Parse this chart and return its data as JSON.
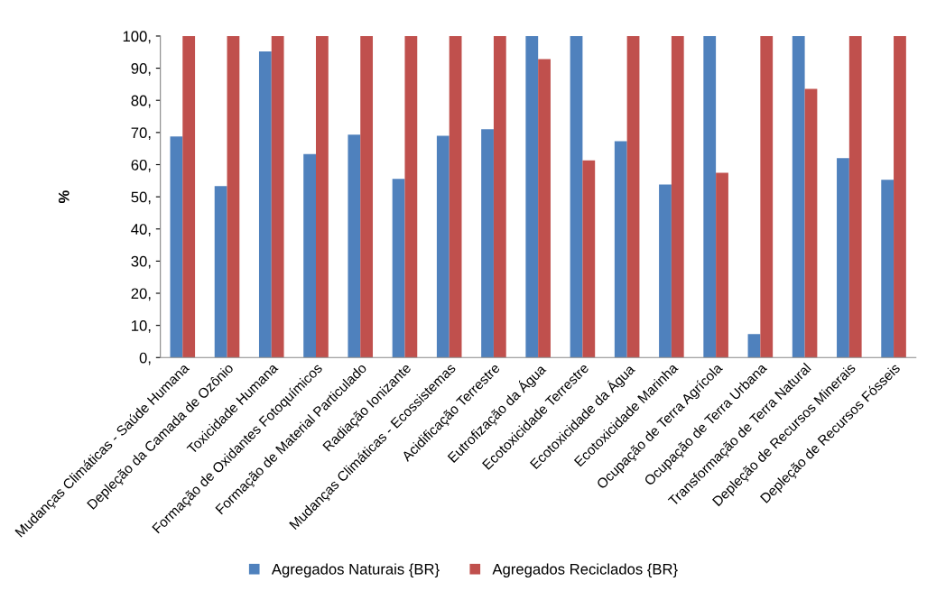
{
  "chart_data": {
    "type": "bar",
    "ylabel": "%",
    "categories": [
      "Mudanças Climáticas - Saúde Humana",
      "Depleção da Camada de Ozônio",
      "Toxicidade Humana",
      "Formação de Oxidantes Fotoquímicos",
      "Formação de Material Particulado",
      "Radiação Ionizante",
      "Mudanças Climáticas - Ecossistemas",
      "Acidificação Terrestre",
      "Eutrofização da Água",
      "Ecotoxicidade Terrestre",
      "Ecotoxicidade da Água",
      "Ecotoxicidade Marinha",
      "Ocupação de Terra Agrícola",
      "Ocupação de Terra Urbana",
      "Transformação de Terra Natural",
      "Depleção de Recursos Minerais",
      "Depleção de Recursos Fósseis"
    ],
    "series": [
      {
        "name": "Agregados Naturais {BR}",
        "color": "#4f81bd",
        "values": [
          68.8,
          53.3,
          95.2,
          63.3,
          69.3,
          55.6,
          69,
          71,
          100,
          100,
          67.3,
          53.8,
          100,
          7.3,
          100,
          62,
          55.3
        ]
      },
      {
        "name": "Agregados Reciclados {BR}",
        "color": "#c0504d",
        "values": [
          100,
          100,
          100,
          100,
          100,
          100,
          100,
          100,
          92.8,
          61.3,
          100,
          100,
          57.5,
          100,
          83.6,
          100,
          100
        ]
      }
    ],
    "ylim": [
      0,
      100
    ],
    "yticks": [
      {
        "value": 0,
        "label": "0,"
      },
      {
        "value": 10,
        "label": "10,"
      },
      {
        "value": 20,
        "label": "20,"
      },
      {
        "value": 30,
        "label": "30,"
      },
      {
        "value": 40,
        "label": "40,"
      },
      {
        "value": 50,
        "label": "50,"
      },
      {
        "value": 60,
        "label": "60,"
      },
      {
        "value": 70,
        "label": "70,"
      },
      {
        "value": 80,
        "label": "80,"
      },
      {
        "value": 90,
        "label": "90,"
      },
      {
        "value": 100,
        "label": "100,"
      }
    ],
    "grid": false,
    "legend": "bottom"
  }
}
